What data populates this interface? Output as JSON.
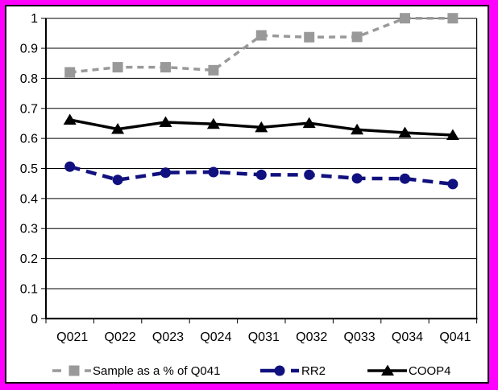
{
  "frame": {
    "border_color": "#FF00FF",
    "chart_background": "#FFFFFF",
    "chart_border_color": "#000000"
  },
  "chart_data": {
    "type": "line",
    "title": "",
    "xlabel": "",
    "ylabel": "",
    "grid": true,
    "legend_position": "bottom",
    "categories": [
      "Q021",
      "Q022",
      "Q023",
      "Q024",
      "Q031",
      "Q032",
      "Q033",
      "Q034",
      "Q041"
    ],
    "y_axis": {
      "min": 0,
      "max": 1,
      "step": 0.1,
      "tick_labels": [
        "0",
        "0.1",
        "0.2",
        "0.3",
        "0.4",
        "0.5",
        "0.6",
        "0.7",
        "0.8",
        "0.9",
        "1"
      ]
    },
    "series": [
      {
        "name": "Sample as a % of Q041",
        "color": "#999999",
        "marker": "square",
        "line_style": "dashed",
        "values": [
          0.82,
          0.837,
          0.837,
          0.827,
          0.943,
          0.937,
          0.938,
          1.0,
          1.0
        ]
      },
      {
        "name": "RR2",
        "color": "#10107E",
        "marker": "circle",
        "line_style": "dashed",
        "values": [
          0.506,
          0.462,
          0.486,
          0.488,
          0.479,
          0.479,
          0.467,
          0.466,
          0.448
        ]
      },
      {
        "name": "COOP4",
        "color": "#000000",
        "marker": "triangle",
        "line_style": "solid",
        "values": [
          0.662,
          0.631,
          0.654,
          0.648,
          0.637,
          0.651,
          0.629,
          0.619,
          0.611
        ]
      }
    ]
  }
}
